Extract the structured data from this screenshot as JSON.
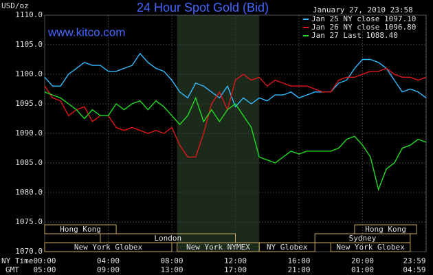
{
  "chart_data": {
    "type": "line",
    "title": "24 Hour Spot Gold (Bid)",
    "subtitle": "www.kitco.com",
    "timestamp": "January 27, 2010 23:58",
    "ylabel": "USD/oz",
    "xlabel": "NY Time",
    "x2label": "GMT",
    "xlim": [
      0,
      24
    ],
    "xticks": [
      {
        "value": 0,
        "label": "00:00"
      },
      {
        "value": 4,
        "label": "04:00"
      },
      {
        "value": 8,
        "label": "08:00"
      },
      {
        "value": 12,
        "label": "12:00"
      },
      {
        "value": 16,
        "label": "16:00"
      },
      {
        "value": 20,
        "label": "20:00"
      },
      {
        "value": 23.98,
        "label": "23:59"
      }
    ],
    "x2ticks": [
      {
        "value": 0,
        "label": "05:00"
      },
      {
        "value": 4,
        "label": "09:00"
      },
      {
        "value": 8,
        "label": "13:00"
      },
      {
        "value": 12,
        "label": "17:00"
      },
      {
        "value": 16,
        "label": "21:00"
      },
      {
        "value": 20,
        "label": "01:00"
      },
      {
        "value": 23.98,
        "label": "04:59"
      }
    ],
    "ylim": [
      1070,
      1110
    ],
    "yticks": [
      {
        "value": 1070,
        "label": "1070.0"
      },
      {
        "value": 1075,
        "label": "1075.0"
      },
      {
        "value": 1080,
        "label": "1080.0"
      },
      {
        "value": 1085,
        "label": "1085.0"
      },
      {
        "value": 1090,
        "label": "1090.0"
      },
      {
        "value": 1095,
        "label": "1095.0"
      },
      {
        "value": 1100,
        "label": "1100.0"
      },
      {
        "value": 1105,
        "label": "1105.0"
      },
      {
        "value": 1110,
        "label": "1110.0"
      }
    ],
    "grid": true,
    "highlight": [
      8.33,
      13.5
    ],
    "sessions": [
      [
        {
          "label": "Hong Kong",
          "start": 0,
          "end": 4.5
        },
        {
          "label": "Hong Kong",
          "start": 19.5,
          "end": 23.4
        }
      ],
      [
        {
          "label": "London",
          "start": 3.5,
          "end": 12
        },
        {
          "label": "Sydney",
          "start": 17,
          "end": 23
        }
      ],
      [
        {
          "label": "New York Globex",
          "start": 0,
          "end": 8
        },
        {
          "label": "New York NYMEX",
          "start": 8.33,
          "end": 13.5
        },
        {
          "label": "NY Globex",
          "start": 13.5,
          "end": 17
        },
        {
          "label": "New York Globex",
          "start": 18,
          "end": 23
        }
      ]
    ],
    "x": [
      0,
      0.5,
      1,
      1.5,
      2,
      2.5,
      3,
      3.5,
      4,
      4.5,
      5,
      5.5,
      6,
      6.5,
      7,
      7.5,
      8,
      8.5,
      9,
      9.5,
      10,
      10.5,
      11,
      11.5,
      12,
      12.5,
      13,
      13.5,
      14,
      14.5,
      15,
      15.5,
      16,
      16.5,
      17,
      17.5,
      18,
      18.5,
      19,
      19.5,
      20,
      20.5,
      21,
      21.5,
      22,
      22.5,
      23,
      23.5,
      24
    ],
    "series": [
      {
        "name": "Jan 25 NY close 1097.10",
        "color": "#33bbff",
        "values": [
          1099.5,
          1098,
          1098,
          1100,
          1101,
          1102,
          1101.5,
          1101.5,
          1100.5,
          1100.5,
          1101,
          1101.5,
          1103.5,
          1102,
          1101,
          1100.5,
          1099,
          1097,
          1096,
          1098.5,
          1098,
          1097,
          1096,
          1098,
          1094.5,
          1096,
          1095,
          1096,
          1095.5,
          1096.5,
          1096.5,
          1097,
          1096,
          1096.5,
          1097,
          1097,
          1097,
          1098.5,
          1099,
          1101,
          1102.5,
          1102.5,
          1102,
          1101,
          1099,
          1097,
          1097.5,
          1097,
          1096
        ]
      },
      {
        "name": "Jan 26 NY close 1096.80",
        "color": "#e01818",
        "values": [
          1098,
          1096,
          1095.5,
          1093,
          1094,
          1094.5,
          1092,
          1093,
          1093,
          1091,
          1090.5,
          1091,
          1090.5,
          1090,
          1090.5,
          1090,
          1091,
          1088,
          1086,
          1086,
          1090,
          1095,
          1097,
          1094,
          1099,
          1100,
          1099,
          1099.5,
          1098,
          1099,
          1098.5,
          1098,
          1098,
          1098,
          1097.5,
          1097,
          1097,
          1099,
          1099.5,
          1099.5,
          1100,
          1100.5,
          1100.5,
          1101,
          1100,
          1099.5,
          1099.5,
          1099,
          1099.5
        ]
      },
      {
        "name": "Jan 27 Last 1088.40",
        "color": "#22dd22",
        "values": [
          1097,
          1096.5,
          1096,
          1095,
          1094,
          1092.5,
          1094,
          1093,
          1093,
          1095,
          1094,
          1095,
          1095.5,
          1094,
          1095.5,
          1094.5,
          1093,
          1091.5,
          1093,
          1096,
          1092,
          1094,
          1092,
          1094,
          1095,
          1093,
          1091,
          1086,
          1085.5,
          1085,
          1086,
          1087,
          1086.5,
          1087,
          1087,
          1087,
          1087,
          1087.5,
          1089,
          1089.5,
          1088,
          1086,
          1080.5,
          1084,
          1085,
          1087.5,
          1088,
          1089,
          1088.5
        ]
      }
    ]
  }
}
